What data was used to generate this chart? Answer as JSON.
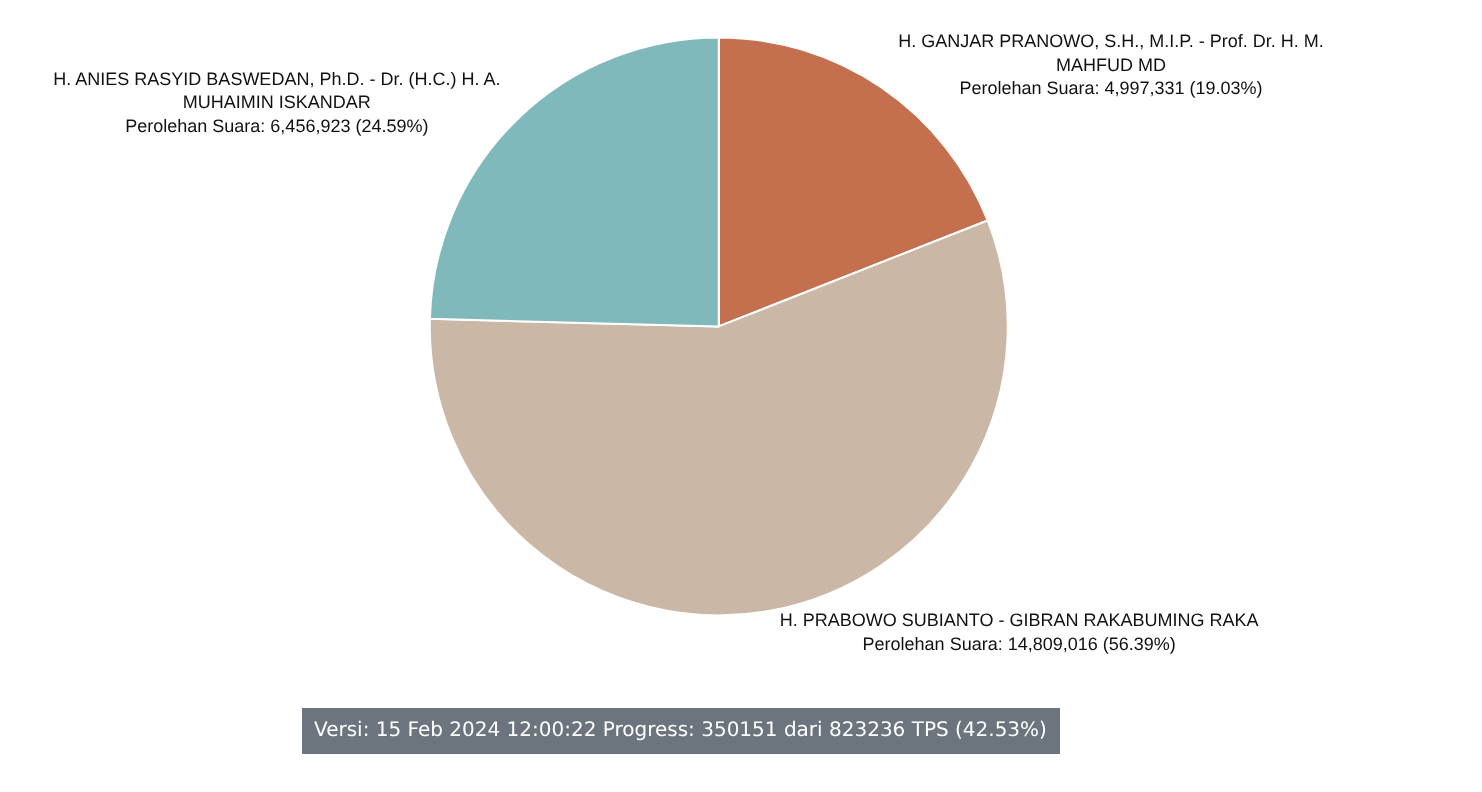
{
  "chart_data": {
    "type": "pie",
    "categories": [
      "H. GANJAR PRANOWO, S.H., M.I.P. - Prof. Dr. H. M. MAHFUD MD",
      "H. PRABOWO SUBIANTO - GIBRAN RAKABUMING RAKA",
      "H. ANIES RASYID BASWEDAN, Ph.D. - Dr. (H.C.) H. A. MUHAIMIN ISKANDAR"
    ],
    "values": [
      4997331,
      14809016,
      6456923
    ],
    "value_labels": [
      "Perolehan Suara: 4,997,331 (19.03%)",
      "Perolehan Suara: 14,809,016 (56.39%)",
      "Perolehan Suara: 6,456,923 (24.59%)"
    ],
    "colors": [
      "#c4704f",
      "#cbb7a5",
      "#7fb9bb"
    ],
    "annotations": [
      "Versi: 15 Feb 2024 12:00:22 Progress: 350151 dari 823236 TPS (42.53%)"
    ],
    "legend": false
  }
}
